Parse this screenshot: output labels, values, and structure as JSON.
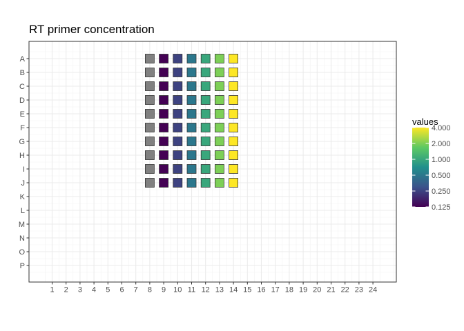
{
  "chart_data": {
    "type": "heatmap",
    "title": "RT primer concentration",
    "xlabel": "",
    "ylabel": "",
    "x_categories": [
      "1",
      "2",
      "3",
      "4",
      "5",
      "6",
      "7",
      "8",
      "9",
      "10",
      "11",
      "12",
      "13",
      "14",
      "15",
      "16",
      "17",
      "18",
      "19",
      "20",
      "21",
      "22",
      "23",
      "24"
    ],
    "y_categories": [
      "A",
      "B",
      "C",
      "D",
      "E",
      "F",
      "G",
      "H",
      "I",
      "J",
      "K",
      "L",
      "M",
      "N",
      "O",
      "P"
    ],
    "filled_rows": [
      "A",
      "B",
      "C",
      "D",
      "E",
      "F",
      "G",
      "H",
      "I",
      "J"
    ],
    "na_column": "8",
    "na_color": "#808080",
    "column_values": [
      {
        "column": "9",
        "value": 0.125
      },
      {
        "column": "10",
        "value": 0.25
      },
      {
        "column": "11",
        "value": 0.5
      },
      {
        "column": "12",
        "value": 1
      },
      {
        "column": "13",
        "value": 2
      },
      {
        "column": "14",
        "value": 4
      }
    ],
    "scale": "log2",
    "grid": true,
    "legend": {
      "title": "values",
      "position": "right",
      "labels": [
        "4.000",
        "2.000",
        "1.000",
        "0.500",
        "0.250",
        "0.125"
      ],
      "breaks": [
        4,
        2,
        1,
        0.5,
        0.25,
        0.125
      ],
      "range": [
        0.125,
        4
      ],
      "colors": [
        "#440154",
        "#3b528b",
        "#21908c",
        "#5dc963",
        "#fde725"
      ]
    }
  }
}
